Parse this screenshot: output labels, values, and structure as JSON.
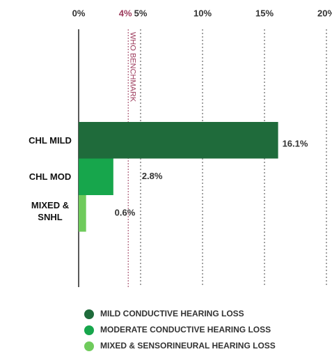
{
  "chart_data": {
    "type": "barh",
    "categories": [
      "CHL MILD",
      "CHL MOD",
      "MIXED & SNHL"
    ],
    "values": [
      16.1,
      2.8,
      0.6
    ],
    "value_labels": [
      "16.1%",
      "2.8%",
      "0.6%"
    ],
    "colors": [
      "#1f6b3b",
      "#17a64c",
      "#6fcb5c"
    ],
    "legend_labels": [
      "MILD CONDUCTIVE HEARING LOSS",
      "MODERATE CONDUCTIVE HEARING LOSS",
      "MIXED & SENSORINEURAL HEARING LOSS"
    ],
    "xlim": [
      0,
      20
    ],
    "xticks": [
      {
        "value": 0,
        "label": "0%"
      },
      {
        "value": 5,
        "label": "5%"
      },
      {
        "value": 10,
        "label": "10%"
      },
      {
        "value": 15,
        "label": "15%"
      },
      {
        "value": 20,
        "label": "20%"
      }
    ],
    "annotations": [
      {
        "value": 4,
        "label": "4%",
        "text": "WHO BENCHMARK",
        "color": "#9c3b5c"
      }
    ],
    "grid": true
  }
}
